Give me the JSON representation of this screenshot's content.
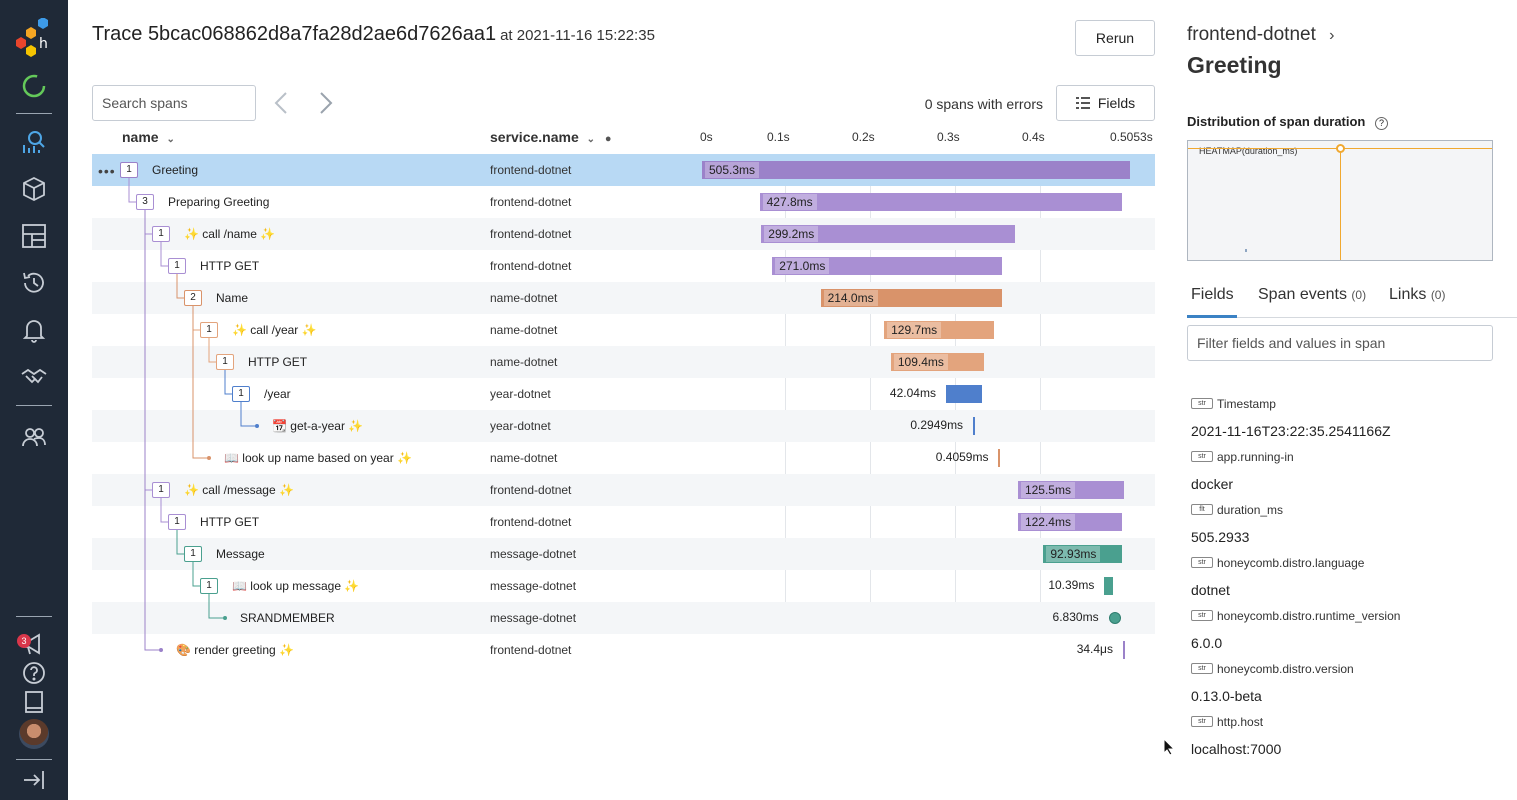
{
  "trace": {
    "title": "Trace 5bcac068862d8a7fa28d2ae6d7626aa1",
    "at": "at 2021-11-16 15:22:35",
    "rerun": "Rerun"
  },
  "toolbar": {
    "search_placeholder": "Search spans",
    "errors": "0 spans with errors",
    "fields_label": "Fields"
  },
  "table": {
    "col_name": "name",
    "col_service": "service.name",
    "ticks": [
      "0s",
      "0.1s",
      "0.2s",
      "0.3s",
      "0.4s",
      "0.5053s"
    ],
    "total_ms": 505.3,
    "rows": [
      {
        "name": "Greeting",
        "service": "frontend-dotnet",
        "count": "1",
        "depth": 0,
        "color": "#9b82c9",
        "start_ms": 0,
        "dur_ms": 505.3,
        "dur": "505.3ms"
      },
      {
        "name": "Preparing Greeting",
        "service": "frontend-dotnet",
        "count": "3",
        "depth": 1,
        "color": "#a98fd3",
        "start_ms": 68,
        "dur_ms": 427.8,
        "dur": "427.8ms"
      },
      {
        "name": "✨ call /name ✨",
        "service": "frontend-dotnet",
        "count": "1",
        "depth": 2,
        "color": "#a98fd3",
        "start_ms": 70,
        "dur_ms": 299.2,
        "dur": "299.2ms"
      },
      {
        "name": "HTTP GET",
        "service": "frontend-dotnet",
        "count": "1",
        "depth": 3,
        "color": "#a98fd3",
        "start_ms": 83,
        "dur_ms": 271.0,
        "dur": "271.0ms"
      },
      {
        "name": "Name",
        "service": "name-dotnet",
        "count": "2",
        "depth": 4,
        "color": "#d9936a",
        "start_ms": 140,
        "dur_ms": 214.0,
        "dur": "214.0ms"
      },
      {
        "name": "✨ call /year ✨",
        "service": "name-dotnet",
        "count": "1",
        "depth": 5,
        "color": "#e3a47d",
        "start_ms": 215,
        "dur_ms": 129.7,
        "dur": "129.7ms"
      },
      {
        "name": "HTTP GET",
        "service": "name-dotnet",
        "count": "1",
        "depth": 6,
        "color": "#e3a47d",
        "start_ms": 223,
        "dur_ms": 109.4,
        "dur": "109.4ms"
      },
      {
        "name": "/year",
        "service": "year-dotnet",
        "count": "1",
        "depth": 7,
        "color": "#4f7fcc",
        "start_ms": 288,
        "dur_ms": 42.04,
        "dur": "42.04ms"
      },
      {
        "name": "📆 get-a-year ✨",
        "service": "year-dotnet",
        "count": "",
        "depth": 8,
        "color": "#4f7fcc",
        "start_ms": 320,
        "dur_ms": 0.2949,
        "dur": "0.2949ms"
      },
      {
        "name": "📖 look up name based on year ✨",
        "service": "name-dotnet",
        "count": "",
        "depth": 5,
        "color": "#d9936a",
        "start_ms": 350,
        "dur_ms": 0.4059,
        "dur": "0.4059ms"
      },
      {
        "name": "✨ call /message ✨",
        "service": "frontend-dotnet",
        "count": "1",
        "depth": 2,
        "color": "#a98fd3",
        "start_ms": 373,
        "dur_ms": 125.5,
        "dur": "125.5ms"
      },
      {
        "name": "HTTP GET",
        "service": "frontend-dotnet",
        "count": "1",
        "depth": 3,
        "color": "#a98fd3",
        "start_ms": 373,
        "dur_ms": 122.4,
        "dur": "122.4ms"
      },
      {
        "name": "Message",
        "service": "message-dotnet",
        "count": "1",
        "depth": 4,
        "color": "#4aa08f",
        "start_ms": 403,
        "dur_ms": 92.93,
        "dur": "92.93ms"
      },
      {
        "name": "📖 look up message ✨",
        "service": "message-dotnet",
        "count": "1",
        "depth": 5,
        "color": "#4aa08f",
        "start_ms": 475,
        "dur_ms": 10.39,
        "dur": "10.39ms"
      },
      {
        "name": "SRANDMEMBER",
        "service": "message-dotnet",
        "count": "",
        "depth": 6,
        "color": "#4aa08f",
        "start_ms": 480,
        "dur_ms": 6.83,
        "dur": "6.830ms"
      },
      {
        "name": "🎨 render greeting ✨",
        "service": "frontend-dotnet",
        "count": "",
        "depth": 2,
        "color": "#9b82c9",
        "start_ms": 497,
        "dur_ms": 0.0344,
        "dur": "34.4μs"
      }
    ]
  },
  "panel": {
    "service": "frontend-dotnet",
    "span_name": "Greeting",
    "dist_title": "Distribution of span duration",
    "heatmap_label": "HEATMAP(duration_ms)",
    "tabs": {
      "fields": "Fields",
      "events": "Span events",
      "events_count": "(0)",
      "links": "Links",
      "links_count": "(0)"
    },
    "filter_placeholder": "Filter fields and values in span",
    "fields": [
      {
        "type": "str",
        "key": "Timestamp",
        "value": "2021-11-16T23:22:35.2541166Z"
      },
      {
        "type": "str",
        "key": "app.running-in",
        "value": "docker"
      },
      {
        "type": "flt",
        "key": "duration_ms",
        "value": "505.2933"
      },
      {
        "type": "str",
        "key": "honeycomb.distro.language",
        "value": "dotnet"
      },
      {
        "type": "str",
        "key": "honeycomb.distro.runtime_version",
        "value": "6.0.0"
      },
      {
        "type": "str",
        "key": "honeycomb.distro.version",
        "value": "0.13.0-beta"
      },
      {
        "type": "str",
        "key": "http.host",
        "value": "localhost:7000"
      }
    ]
  },
  "sidebar": {
    "notification_count": "3"
  }
}
